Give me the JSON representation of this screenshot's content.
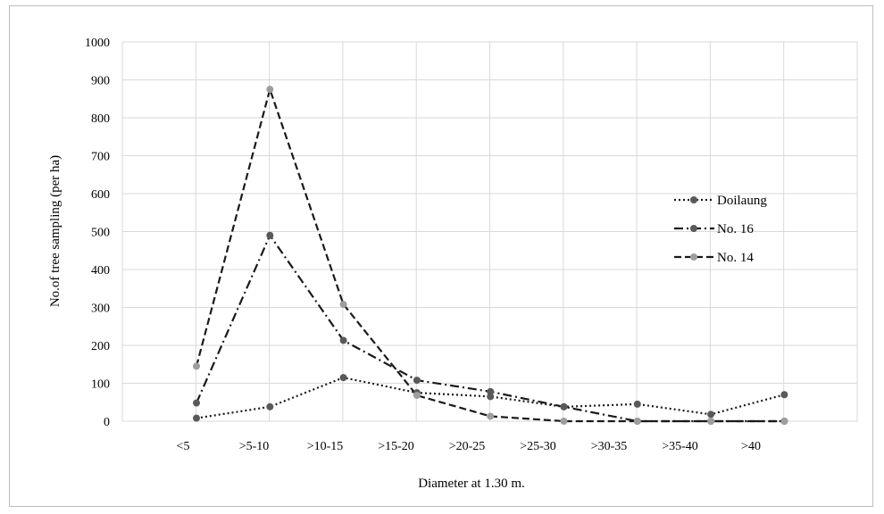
{
  "chart_data": {
    "type": "line",
    "title": "",
    "xlabel": "Diameter at 1.30 m.",
    "ylabel": "No.of tree sampling (per ha)",
    "ylim": [
      0,
      1000
    ],
    "yticks": [
      0,
      100,
      200,
      300,
      400,
      500,
      600,
      700,
      800,
      900,
      1000
    ],
    "categories": [
      "<5",
      ">5-10",
      ">10-15",
      ">15-20",
      ">20-25",
      ">25-30",
      ">30-35",
      ">35-40",
      ">40"
    ],
    "grid": true,
    "legend_position": "right",
    "series": [
      {
        "name": "Doilaung",
        "values": [
          8,
          38,
          115,
          75,
          65,
          38,
          45,
          18,
          70
        ],
        "color": "#595959",
        "dash": "dotted"
      },
      {
        "name": "No. 16",
        "values": [
          48,
          490,
          213,
          108,
          78,
          38,
          0,
          0,
          0
        ],
        "color": "#595959",
        "dash": "dashdot"
      },
      {
        "name": "No. 14",
        "values": [
          145,
          875,
          308,
          68,
          13,
          0,
          0,
          0,
          0
        ],
        "color": "#9e9e9e",
        "dash": "dashed"
      }
    ]
  }
}
